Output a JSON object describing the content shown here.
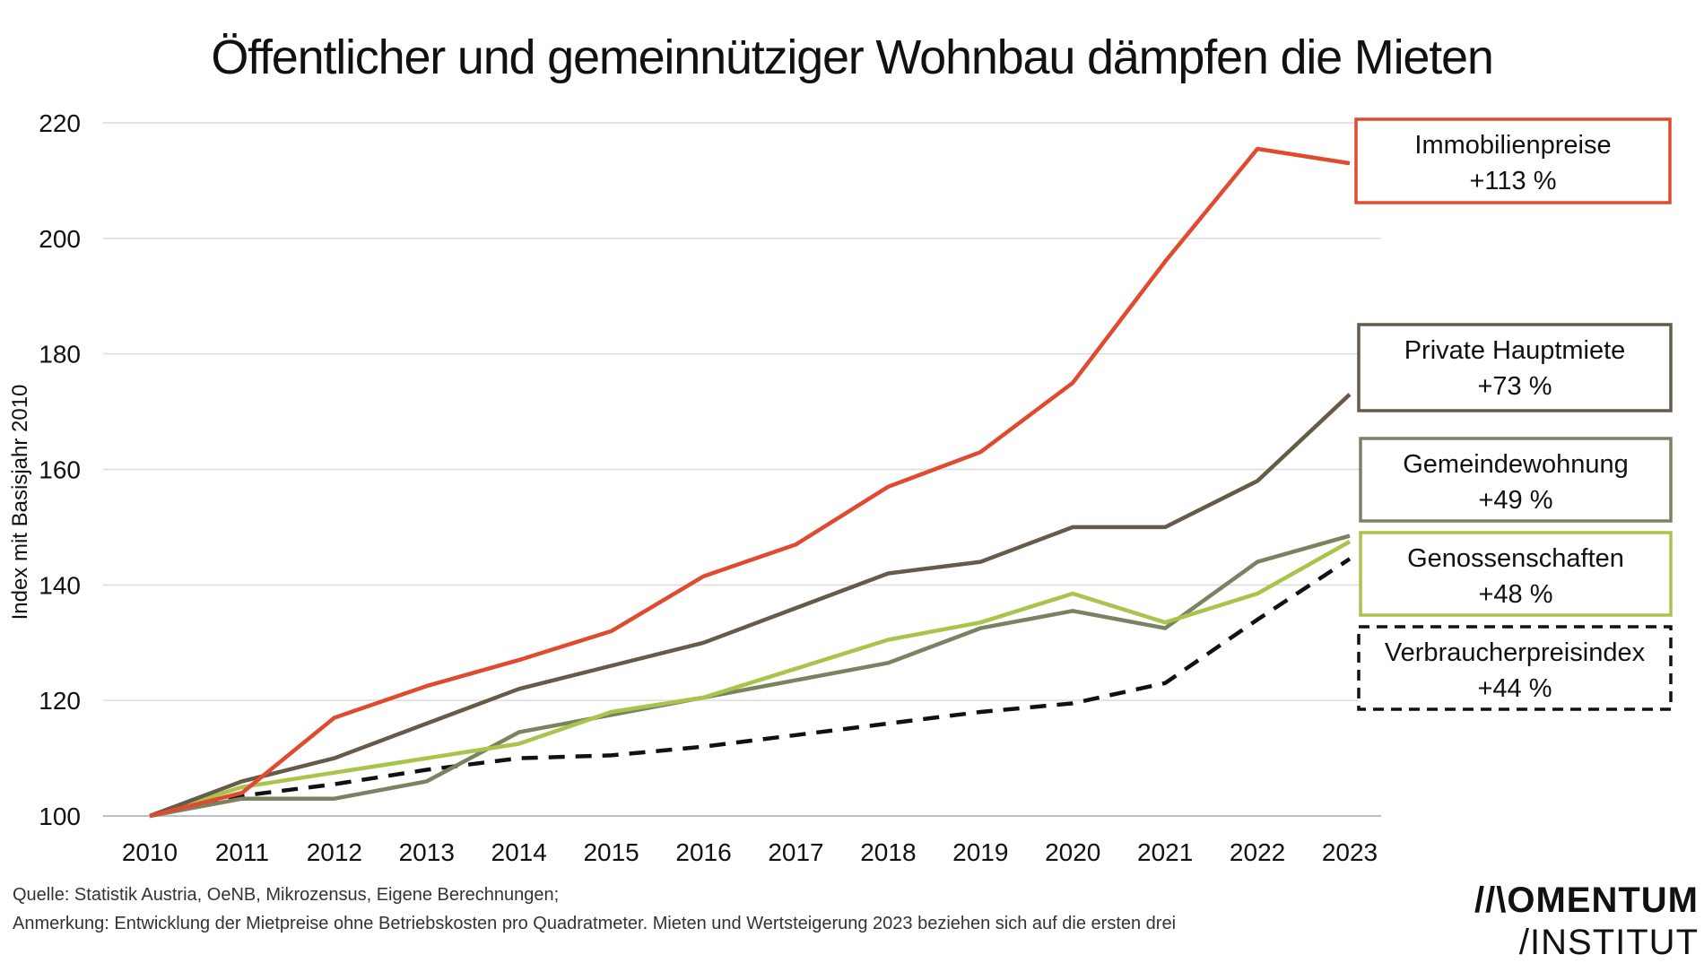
{
  "chart_data": {
    "type": "line",
    "title": "Öffentlicher und gemeinnütziger Wohnbau dämpfen die Mieten",
    "xlabel": "",
    "ylabel": "Index mit Basisjahr 2010",
    "ylim": [
      100,
      220
    ],
    "yticks": [
      100,
      120,
      140,
      160,
      180,
      200,
      220
    ],
    "x": [
      "2010",
      "2011",
      "2012",
      "2013",
      "2014",
      "2015",
      "2016",
      "2017",
      "2018",
      "2019",
      "2020",
      "2021",
      "2022",
      "2023"
    ],
    "grid": "horizontal",
    "legend": "right (labelled boxes)",
    "series": [
      {
        "name": "Immobilienpreise",
        "change": "+113 %",
        "color": "#e04a2e",
        "dashed": false,
        "values": [
          100,
          104,
          117,
          122.5,
          127,
          132,
          141.5,
          147,
          157,
          163,
          175,
          196,
          215.5,
          213
        ]
      },
      {
        "name": "Private Hauptmiete",
        "change": "+73 %",
        "color": "#665a48",
        "dashed": false,
        "values": [
          100,
          106,
          110,
          116,
          122,
          126,
          130,
          136,
          142,
          144,
          150,
          150,
          158,
          173
        ]
      },
      {
        "name": "Gemeindewohnung",
        "change": "+49 %",
        "color": "#7b8262",
        "dashed": false,
        "values": [
          100,
          103,
          103,
          106,
          114.5,
          117.5,
          120.5,
          123.5,
          126.5,
          132.5,
          135.5,
          132.5,
          144,
          148.5
        ]
      },
      {
        "name": "Genossenschaften",
        "change": "+48 %",
        "color": "#a9c44a",
        "dashed": false,
        "values": [
          100,
          105,
          107.5,
          110,
          112.5,
          118,
          120.5,
          125.5,
          130.5,
          133.5,
          138.5,
          133.5,
          138.5,
          147.5
        ]
      },
      {
        "name": "Verbraucherpreisindex",
        "change": "+44 %",
        "color": "#111111",
        "dashed": true,
        "values": [
          100,
          103.5,
          105.5,
          108,
          110,
          110.5,
          112,
          114,
          116,
          118,
          119.5,
          123,
          134,
          144.5
        ]
      }
    ]
  },
  "footer": {
    "source": "Quelle: Statistik Austria, OeNB, Mikrozensus, Eigene Berechnungen;",
    "note": "Anmerkung: Entwicklung der Mietpreise ohne Betriebskosten pro Quadratmeter. Mieten und Wertsteigerung 2023 beziehen sich auf die ersten drei"
  },
  "logo": {
    "line1": "//\\OMENTUM",
    "line2": "/INSTITUT"
  }
}
